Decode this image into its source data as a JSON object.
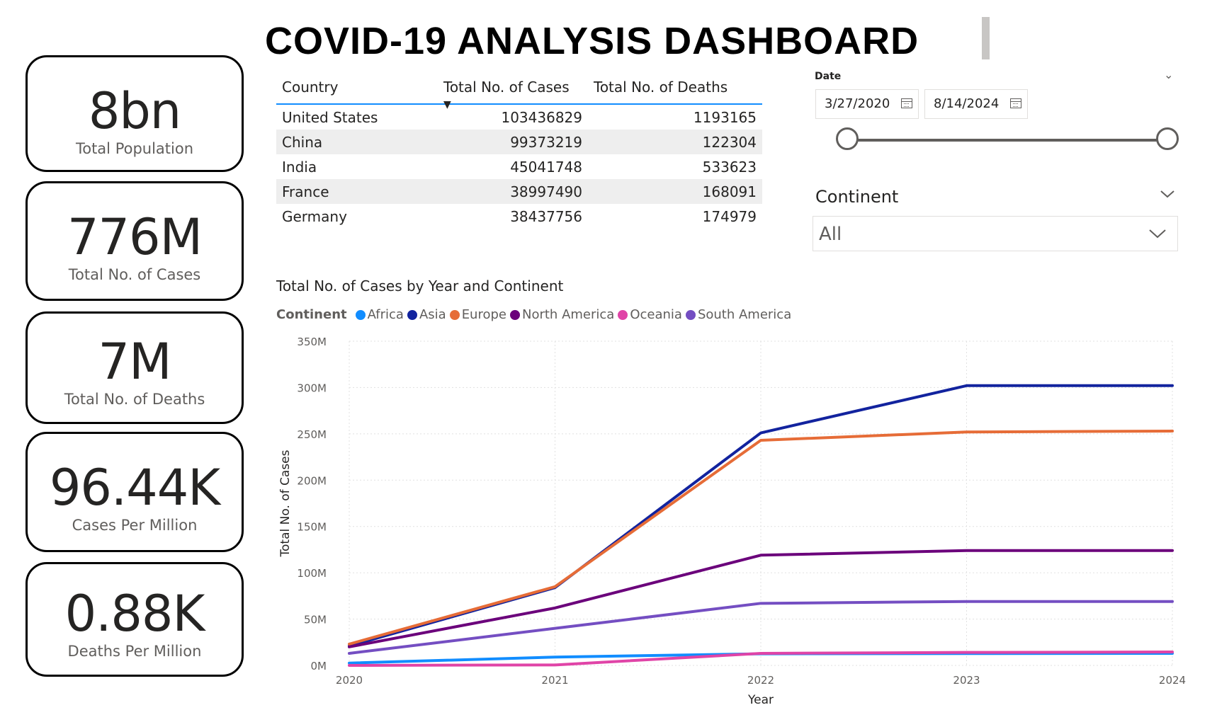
{
  "title": "COVID-19 ANALYSIS DASHBOARD",
  "cards": [
    {
      "value": "8bn",
      "label": "Total Population"
    },
    {
      "value": "776M",
      "label": "Total No. of Cases"
    },
    {
      "value": "7M",
      "label": "Total No. of Deaths"
    },
    {
      "value": "96.44K",
      "label": "Cases Per Million"
    },
    {
      "value": "0.88K",
      "label": "Deaths Per Million"
    }
  ],
  "table": {
    "headers": [
      "Country",
      "Total No. of Cases",
      "Total No. of Deaths"
    ],
    "sorted_column": "Total No. of Cases",
    "rows": [
      {
        "country": "United States",
        "cases": "103436829",
        "deaths": "1193165"
      },
      {
        "country": "China",
        "cases": "99373219",
        "deaths": "122304"
      },
      {
        "country": "India",
        "cases": "45041748",
        "deaths": "533623"
      },
      {
        "country": "France",
        "cases": "38997490",
        "deaths": "168091"
      },
      {
        "country": "Germany",
        "cases": "38437756",
        "deaths": "174979"
      }
    ]
  },
  "date_slicer": {
    "label": "Date",
    "start": "3/27/2020",
    "end": "8/14/2024",
    "range_fraction": [
      0,
      1
    ]
  },
  "continent_slicer": {
    "label": "Continent",
    "value": "All"
  },
  "icons": {
    "collapse": "chevron-down-icon",
    "calendar": "calendar-icon",
    "dropdown": "chevron-down-icon"
  },
  "chart_data": {
    "type": "line",
    "title": "Total No. of Cases by Year and Continent",
    "xlabel": "Year",
    "ylabel": "Total No. of Cases",
    "legend_title": "Continent",
    "legend_position": "top-left",
    "grid": true,
    "x": [
      "2020",
      "2021",
      "2022",
      "2023",
      "2024"
    ],
    "y_ticks": [
      "0M",
      "50M",
      "100M",
      "150M",
      "200M",
      "250M",
      "300M",
      "350M"
    ],
    "ylim": [
      0,
      350000000
    ],
    "series": [
      {
        "name": "Africa",
        "color": "#118dff",
        "values": [
          2500000,
          9000000,
          12500000,
          12800000,
          13000000
        ]
      },
      {
        "name": "Asia",
        "color": "#12239e",
        "values": [
          21000000,
          84000000,
          251000000,
          302000000,
          302000000
        ]
      },
      {
        "name": "Europe",
        "color": "#e66c37",
        "values": [
          23000000,
          85000000,
          243000000,
          252000000,
          253000000
        ]
      },
      {
        "name": "North America",
        "color": "#6b007b",
        "values": [
          20000000,
          62000000,
          119000000,
          124000000,
          124000000
        ]
      },
      {
        "name": "Oceania",
        "color": "#e044a7",
        "values": [
          0,
          500000,
          13000000,
          14000000,
          14500000
        ]
      },
      {
        "name": "South America",
        "color": "#744ec2",
        "values": [
          13000000,
          40000000,
          67000000,
          69000000,
          69000000
        ]
      }
    ]
  }
}
